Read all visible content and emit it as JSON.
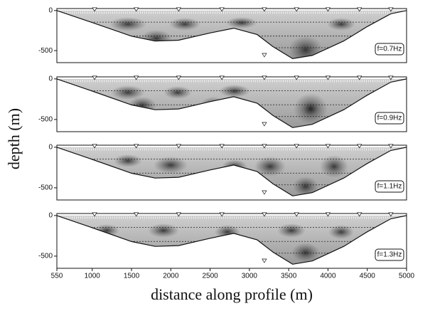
{
  "chart_data": [
    {
      "type": "area",
      "label": "f=0.7Hz",
      "ylabel": "depth (m)",
      "x": [
        550,
        1000,
        1500,
        1800,
        2100,
        2500,
        2800,
        3100,
        3300,
        3550,
        3800,
        4200,
        4500,
        4800,
        5000
      ],
      "values": [
        0,
        -150,
        -320,
        -380,
        -370,
        -280,
        -220,
        -300,
        -450,
        -600,
        -560,
        -380,
        -200,
        -40,
        0
      ],
      "xlim": [
        550,
        5000
      ],
      "ylim": [
        -650,
        25
      ],
      "yticks": [
        0,
        -500
      ],
      "color": "#8a8a8a"
    },
    {
      "type": "area",
      "label": "f=0.9Hz",
      "x": [
        550,
        1000,
        1500,
        1800,
        2100,
        2500,
        2800,
        3100,
        3300,
        3550,
        3800,
        4200,
        4500,
        4800,
        5000
      ],
      "values": [
        0,
        -150,
        -320,
        -380,
        -370,
        -280,
        -220,
        -300,
        -450,
        -600,
        -560,
        -380,
        -200,
        -40,
        0
      ],
      "xlim": [
        550,
        5000
      ],
      "ylim": [
        -650,
        25
      ],
      "yticks": [
        0,
        -500
      ],
      "color": "#8a8a8a"
    },
    {
      "type": "area",
      "label": "f=1.1Hz",
      "x": [
        550,
        1000,
        1500,
        1800,
        2100,
        2500,
        2800,
        3100,
        3300,
        3550,
        3800,
        4200,
        4500,
        4800,
        5000
      ],
      "values": [
        0,
        -150,
        -320,
        -380,
        -370,
        -280,
        -220,
        -300,
        -450,
        -600,
        -560,
        -380,
        -200,
        -40,
        0
      ],
      "xlim": [
        550,
        5000
      ],
      "ylim": [
        -650,
        25
      ],
      "yticks": [
        0,
        -500
      ],
      "color": "#8a8a8a"
    },
    {
      "type": "area",
      "label": "f=1.3Hz",
      "xlabel": "distance along profile (m)",
      "x": [
        550,
        1000,
        1500,
        1800,
        2100,
        2500,
        2800,
        3100,
        3300,
        3550,
        3800,
        4200,
        4500,
        4800,
        5000
      ],
      "values": [
        0,
        -150,
        -320,
        -380,
        -370,
        -280,
        -220,
        -300,
        -450,
        -600,
        -560,
        -380,
        -200,
        -40,
        0
      ],
      "xlim": [
        550,
        5000
      ],
      "ylim": [
        -650,
        25
      ],
      "yticks": [
        0,
        -500
      ],
      "xticks": [
        550,
        1000,
        1500,
        2000,
        2500,
        3000,
        3500,
        4000,
        4500,
        5000
      ],
      "color": "#8a8a8a"
    }
  ]
}
